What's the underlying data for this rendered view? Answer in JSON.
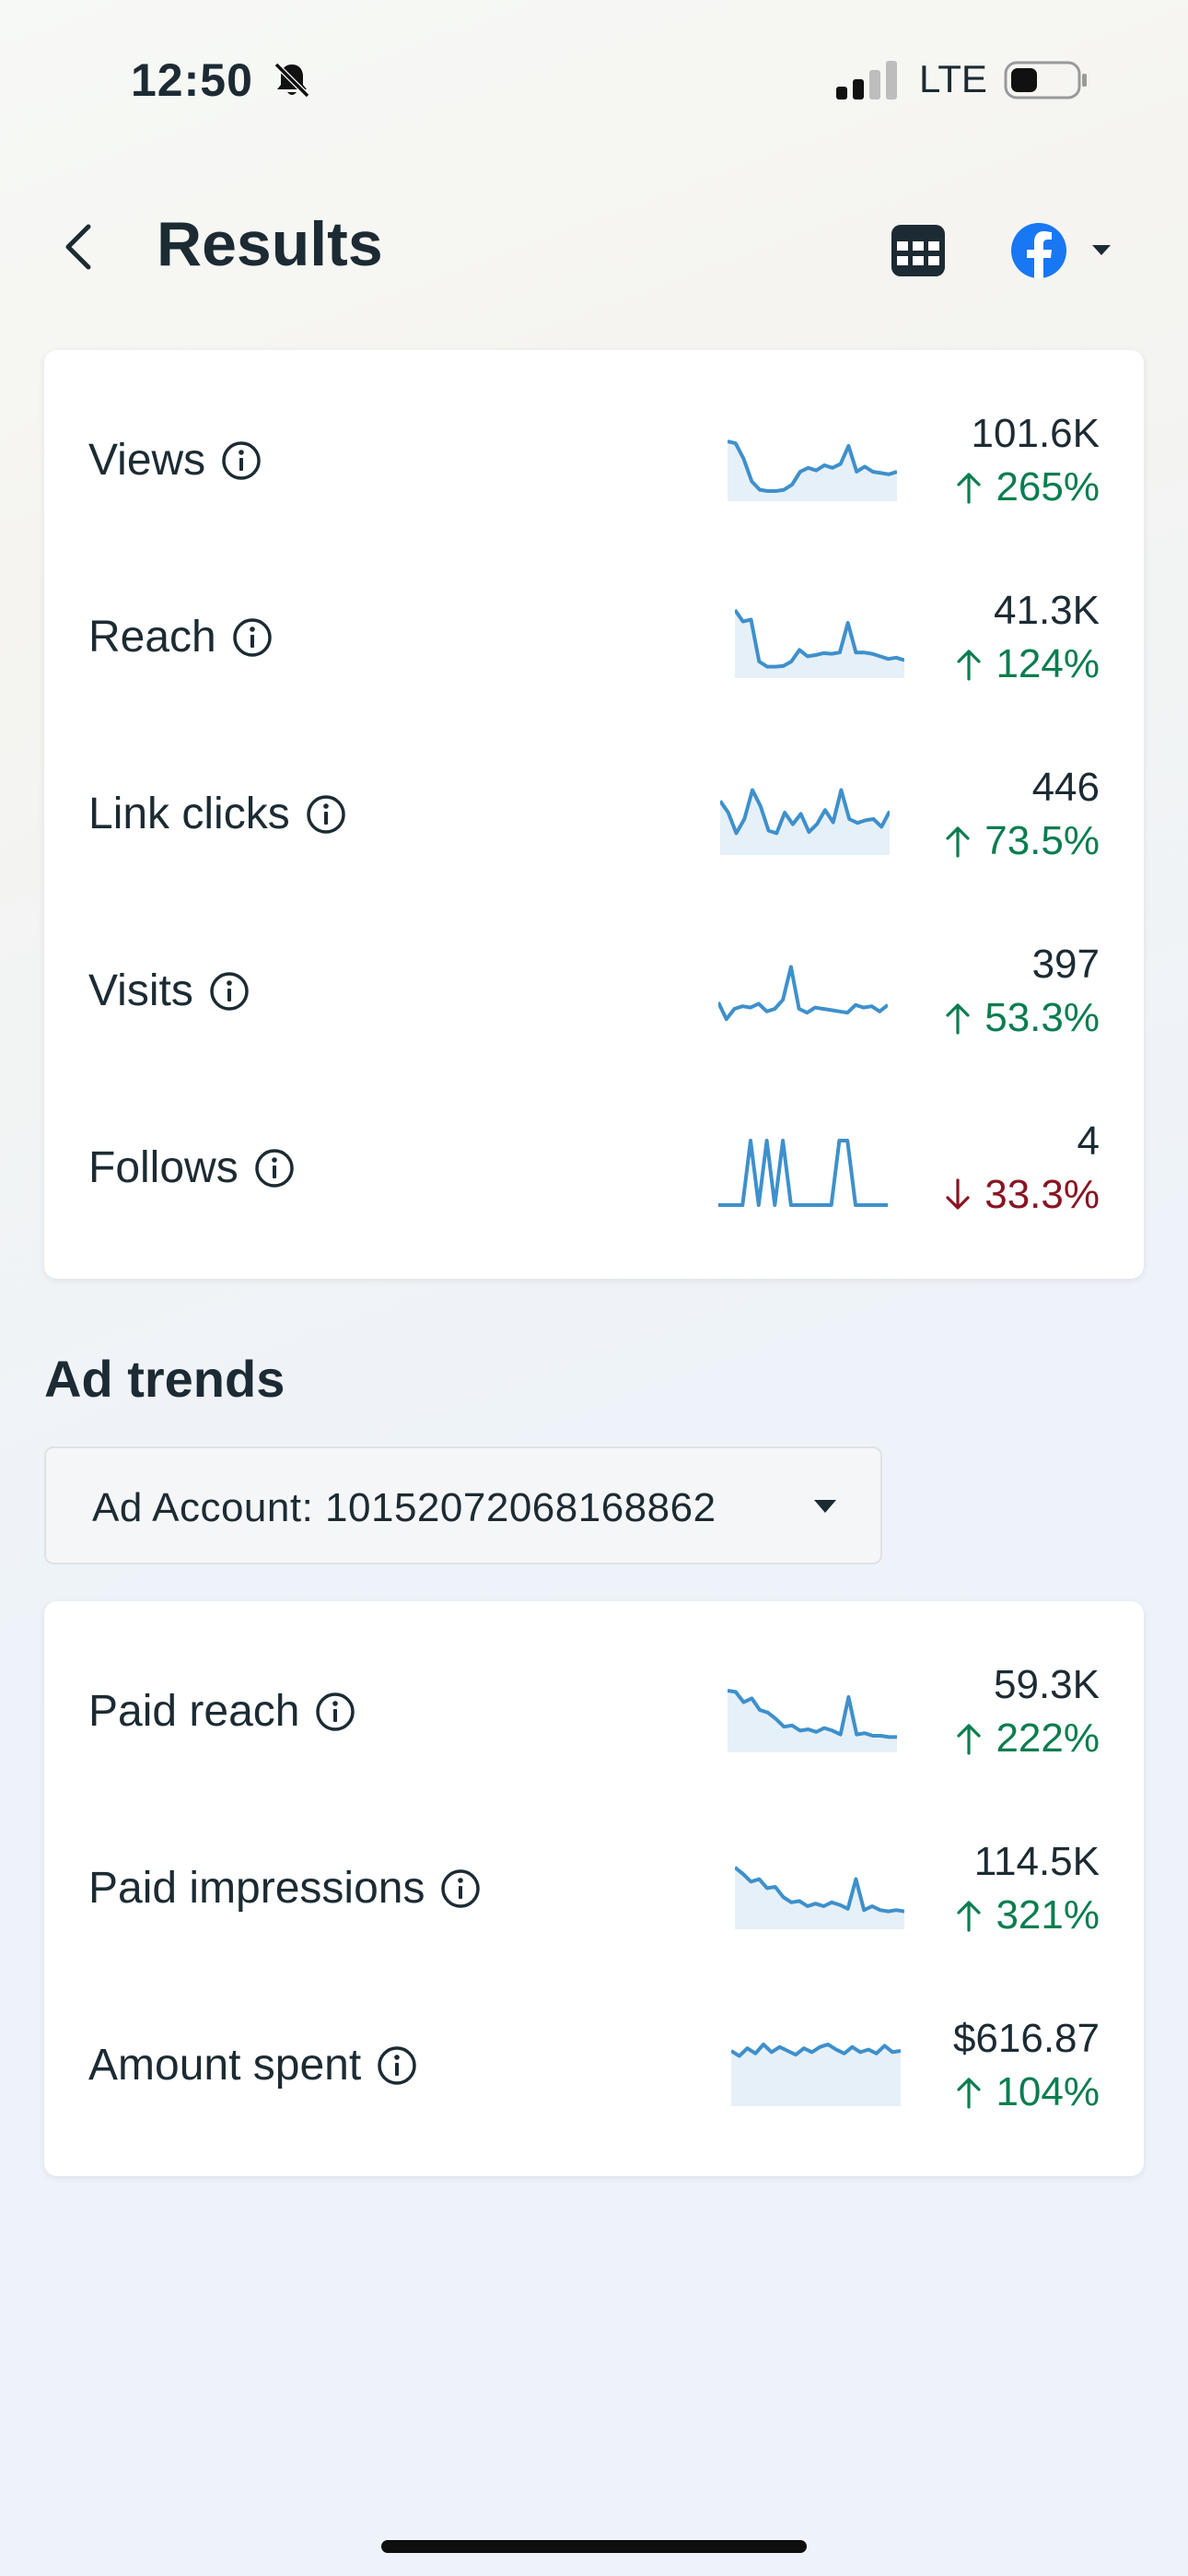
{
  "status_bar": {
    "time": "12:50",
    "network": "LTE"
  },
  "header": {
    "title": "Results",
    "platform_icon": "facebook-icon",
    "brand_color": "#1877f2"
  },
  "results": [
    {
      "label": "Views",
      "value": "101.6K",
      "direction": "up",
      "change": "265%",
      "trend": [
        0.87,
        0.84,
        0.6,
        0.25,
        0.12,
        0.1,
        0.1,
        0.12,
        0.2,
        0.4,
        0.46,
        0.42,
        0.5,
        0.46,
        0.52,
        0.8,
        0.4,
        0.48,
        0.4,
        0.38,
        0.36,
        0.4
      ]
    },
    {
      "label": "Reach",
      "value": "41.3K",
      "direction": "up",
      "change": "124%",
      "trend": [
        1.0,
        0.82,
        0.85,
        0.2,
        0.12,
        0.12,
        0.13,
        0.2,
        0.38,
        0.28,
        0.3,
        0.33,
        0.32,
        0.34,
        0.8,
        0.34,
        0.34,
        0.32,
        0.28,
        0.24,
        0.26,
        0.22
      ]
    },
    {
      "label": "Link clicks",
      "value": "446",
      "direction": "up",
      "change": "73.5%",
      "trend": [
        0.78,
        0.6,
        0.28,
        0.5,
        0.95,
        0.7,
        0.32,
        0.28,
        0.6,
        0.42,
        0.58,
        0.3,
        0.42,
        0.64,
        0.45,
        0.95,
        0.5,
        0.44,
        0.48,
        0.5,
        0.38,
        0.62
      ]
    },
    {
      "label": "Visits",
      "value": "397",
      "direction": "up",
      "change": "53.3%",
      "trend": [
        0.4,
        0.14,
        0.3,
        0.34,
        0.32,
        0.38,
        0.26,
        0.3,
        0.44,
        0.95,
        0.3,
        0.24,
        0.32,
        0.3,
        0.28,
        0.26,
        0.24,
        0.36,
        0.32,
        0.34,
        0.26,
        0.36
      ]
    },
    {
      "label": "Follows",
      "value": "4",
      "direction": "down",
      "change": "33.3%",
      "trend": [
        0,
        0,
        0,
        0,
        1.0,
        0,
        1.0,
        0,
        1.0,
        0,
        0,
        0,
        0,
        0,
        0,
        1.0,
        1.0,
        0,
        0,
        0,
        0,
        0
      ]
    }
  ],
  "ad_trends": {
    "title": "Ad trends",
    "account_selector": "Ad Account: 10152072068168862",
    "metrics": [
      {
        "label": "Paid reach",
        "value": "59.3K",
        "direction": "up",
        "change": "222%",
        "trend": [
          0.9,
          0.88,
          0.72,
          0.78,
          0.6,
          0.56,
          0.46,
          0.34,
          0.36,
          0.28,
          0.3,
          0.26,
          0.32,
          0.28,
          0.22,
          0.8,
          0.22,
          0.24,
          0.2,
          0.2,
          0.18,
          0.18
        ]
      },
      {
        "label": "Paid impressions",
        "value": "114.5K",
        "direction": "up",
        "change": "321%",
        "trend": [
          0.9,
          0.8,
          0.68,
          0.72,
          0.58,
          0.6,
          0.44,
          0.36,
          0.38,
          0.3,
          0.34,
          0.3,
          0.36,
          0.32,
          0.26,
          0.72,
          0.24,
          0.3,
          0.24,
          0.22,
          0.24,
          0.22
        ]
      },
      {
        "label": "Amount spent",
        "value": "$616.87",
        "direction": "up",
        "change": "104%",
        "trend": [
          0.8,
          0.72,
          0.84,
          0.76,
          0.9,
          0.78,
          0.86,
          0.8,
          0.74,
          0.84,
          0.78,
          0.86,
          0.9,
          0.82,
          0.76,
          0.86,
          0.78,
          0.82,
          0.76,
          0.88,
          0.78,
          0.8
        ]
      }
    ]
  },
  "colors": {
    "positive": "#0a7d4f",
    "negative": "#8a1422",
    "sparkline": "#3e90cc",
    "sparkline_fill": "#e6f0f8"
  }
}
